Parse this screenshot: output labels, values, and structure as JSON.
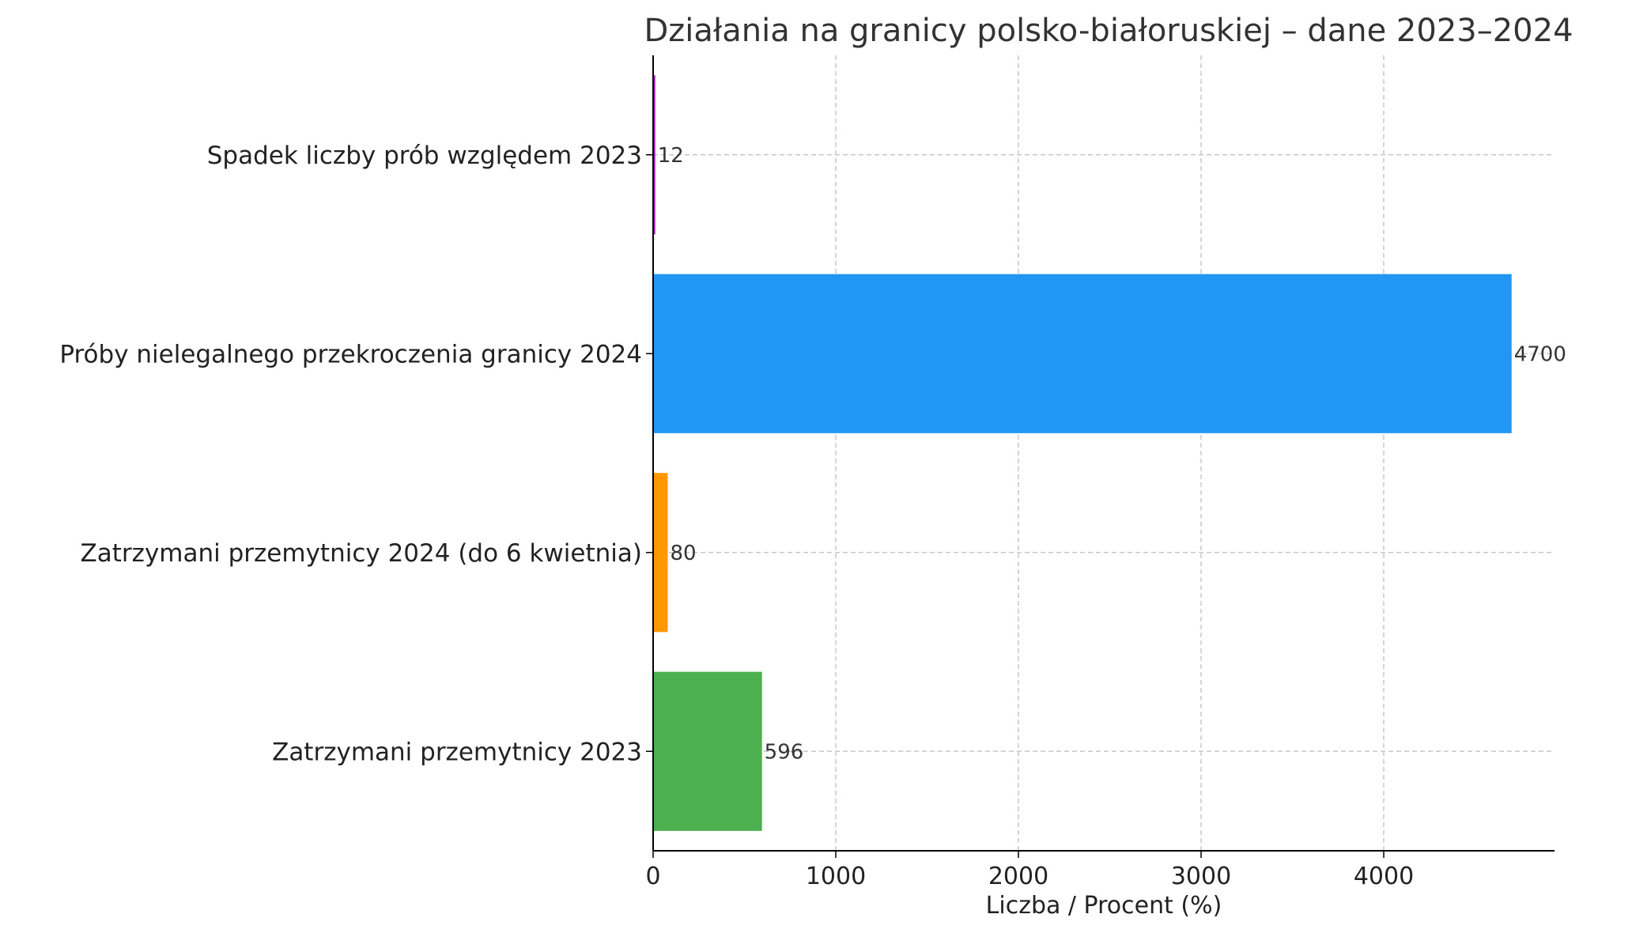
{
  "chart_data": {
    "type": "bar",
    "orientation": "horizontal",
    "title": "Działania na granicy polsko-białoruskiej – dane 2023–2024",
    "xlabel": "Liczba / Procent (%)",
    "ylabel": "",
    "xlim": [
      0,
      4935
    ],
    "xticks": [
      0,
      1000,
      2000,
      3000,
      4000
    ],
    "grid": true,
    "legend": "none",
    "categories": [
      "Zatrzymani przemytnicy 2023",
      "Zatrzymani przemytnicy 2024 (do 6 kwietnia)",
      "Próby nielegalnego przekroczenia granicy 2024",
      "Spadek liczby prób względem 2023"
    ],
    "values": [
      596,
      80,
      4700,
      12
    ],
    "colors": [
      "#4caf50",
      "#ff9800",
      "#2196f3",
      "#9c27b0"
    ]
  }
}
